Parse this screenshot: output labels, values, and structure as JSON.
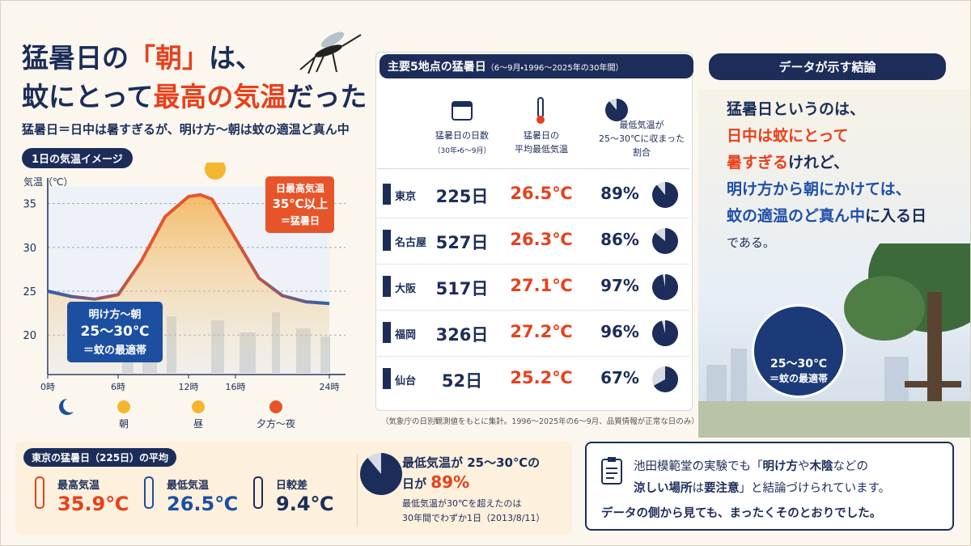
{
  "header": {
    "title_line1": [
      "猛暑日の",
      "「朝」",
      "は、"
    ],
    "title_line2": [
      "蚊にとって",
      "最高の気温",
      "だった"
    ],
    "subtitle": "猛暑日＝日中は暑すぎるが、明け方〜朝は蚊の適温ど真ん中"
  },
  "chart_data": {
    "type": "line",
    "title": "1日の気温イメージ",
    "y_label": "気温（℃）",
    "x": [
      0,
      2,
      4,
      6,
      8,
      10,
      12,
      13,
      14,
      16,
      18,
      20,
      22,
      24
    ],
    "series": [
      {
        "values": [
          25,
          24.4,
          24.1,
          24.6,
          28.5,
          33.5,
          35.8,
          36,
          35.5,
          31,
          26.5,
          24.5,
          23.8,
          23.6
        ],
        "color": "#e8542a"
      }
    ],
    "xlim": [
      0,
      24
    ],
    "ylim": [
      15.5,
      37
    ],
    "xticks": [
      {
        "value": 0,
        "label": "0時"
      },
      {
        "value": 6,
        "label": "6時"
      },
      {
        "value": 12,
        "label": "12時"
      },
      {
        "value": 16,
        "label": "16時"
      },
      {
        "value": 24,
        "label": "24時"
      }
    ],
    "yticks": [
      20,
      25,
      30,
      35
    ],
    "grid": true,
    "annotation_hot": [
      "日最高気温",
      "35℃以上",
      "＝猛暑日"
    ],
    "annotation_cool": [
      "明け方〜朝",
      "25〜30℃",
      "＝蚊の最適帯"
    ],
    "time_labels": [
      "朝",
      "昼",
      "夕方〜夜"
    ]
  },
  "table": {
    "title": "主要5地点の猛暑日",
    "title_note": "（6〜9月・1996〜2025年の30年間）",
    "columns": [
      [
        "猛暑日の日数",
        "（30年・6〜9月）"
      ],
      [
        "猛暑日の",
        "平均最低気温"
      ],
      [
        "最低気温が",
        "25〜30℃に収まった",
        "割合"
      ]
    ],
    "rows": [
      {
        "city": "東京",
        "days": "225日",
        "avg_min": "26.5℃",
        "share": 89,
        "share_label": "89%"
      },
      {
        "city": "名古屋",
        "days": "527日",
        "avg_min": "26.3℃",
        "share": 86,
        "share_label": "86%"
      },
      {
        "city": "大阪",
        "days": "517日",
        "avg_min": "27.1℃",
        "share": 97,
        "share_label": "97%"
      },
      {
        "city": "福岡",
        "days": "326日",
        "avg_min": "27.2℃",
        "share": 96,
        "share_label": "96%"
      },
      {
        "city": "仙台",
        "days": "52日",
        "avg_min": "25.2℃",
        "share": 67,
        "share_label": "67%"
      }
    ],
    "footnote": "（気象庁の日別観測値をもとに集計。1996〜2025年の6〜9月、品質情報が正常な日のみ）"
  },
  "conclusion": {
    "title": "データが示す結論",
    "lines": [
      [
        "猛暑日というのは、"
      ],
      [
        "日中は蚊にとって"
      ],
      [
        "暑すぎる",
        "けれど、"
      ],
      [
        "明け方から朝にかけては、"
      ],
      [
        "蚊の適温のど真ん中",
        "に入る日"
      ],
      [
        "である。"
      ]
    ],
    "badge": [
      "25〜30℃",
      "＝蚊の最適帯"
    ]
  },
  "tokyo": {
    "title": "東京の猛暑日（225日）の平均",
    "items": [
      {
        "label": "最高気温",
        "value": "35.9℃"
      },
      {
        "label": "最低気温",
        "value": "26.5℃"
      },
      {
        "label": "日較差",
        "value": "9.4℃"
      }
    ],
    "share_text": [
      "最低気温が 25〜30℃の",
      "日が"
    ],
    "share": {
      "value": 89,
      "label": "89%"
    },
    "note": [
      "最低気温が30℃を超えたのは",
      "30年間でわずか1日（2013/8/11）"
    ]
  },
  "experiment": {
    "lines": [
      [
        "池田模範堂の実験でも「",
        "明け方",
        "や",
        "木陰",
        "などの"
      ],
      [
        "涼しい場所",
        "は",
        "要注意",
        "」と結論づけられています。"
      ],
      [
        "データの側から見ても、まったくそのとおりでした。"
      ]
    ]
  }
}
